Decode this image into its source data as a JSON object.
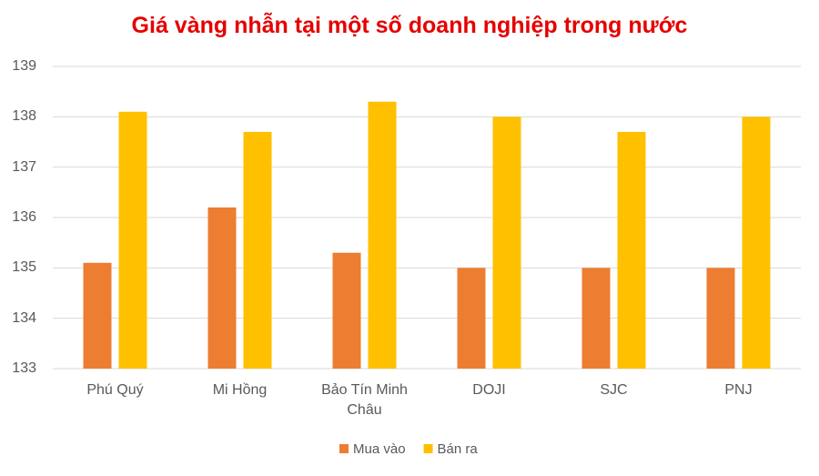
{
  "chart_data": {
    "type": "bar",
    "title": "Giá vàng nhẫn tại một số doanh nghiệp trong nước",
    "categories": [
      "Phú Quý",
      "Mi Hồng",
      "Bảo Tín Minh Châu",
      "DOJI",
      "SJC",
      "PNJ"
    ],
    "series": [
      {
        "name": "Mua vào",
        "color": "#ED7D31",
        "values": [
          135.1,
          136.2,
          135.3,
          135,
          135,
          135
        ]
      },
      {
        "name": "Bán ra",
        "color": "#FFC000",
        "values": [
          138.1,
          137.7,
          138.3,
          138,
          137.7,
          138
        ]
      }
    ],
    "ylim": [
      133,
      139
    ],
    "yticks": [
      133,
      134,
      135,
      136,
      137,
      138,
      139
    ],
    "grid": true,
    "legend": "bottom"
  }
}
